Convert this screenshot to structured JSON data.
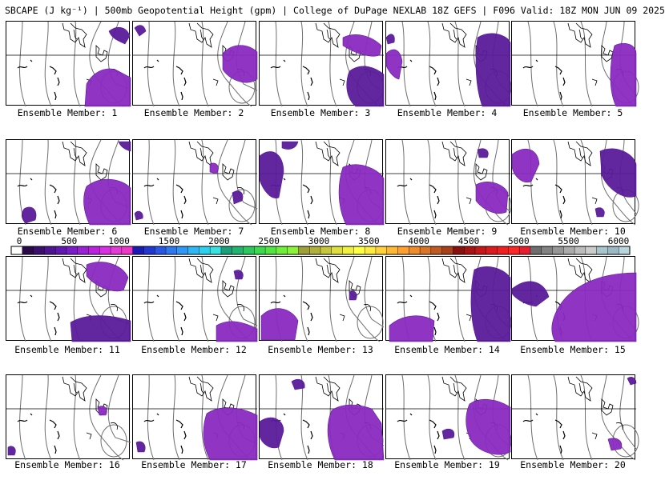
{
  "header": {
    "title": "SBCAPE (J kg⁻¹) | 500mb Geopotential Height (gpm) | College of DuPage NEXLAB 18Z GEFS | F096 Valid: 18Z MON JUN 09 2025"
  },
  "colors": {
    "contour": "#6e6e6e",
    "coast": "#000000",
    "cape_low": "#5a1a9a",
    "cape_mid": "#8a2ac0",
    "cape_high": "#b020e0"
  },
  "colorbar": {
    "labels": [
      "0",
      "500",
      "1000",
      "1500",
      "2000",
      "2500",
      "3000",
      "3500",
      "4000",
      "4500",
      "5000",
      "5500",
      "6000"
    ],
    "colors": [
      "#ffffff",
      "#2a0a4a",
      "#3c0f6e",
      "#4e1592",
      "#5f19b0",
      "#7a1dc8",
      "#9a20d6",
      "#bb22e0",
      "#d92fe6",
      "#e43ad6",
      "#ee38c8",
      "#1a1ab4",
      "#2236d2",
      "#2a56e6",
      "#2e78f0",
      "#2f98f6",
      "#2eb6f6",
      "#2dd0ee",
      "#38e2e0",
      "#1aa07a",
      "#22b46e",
      "#2cc85e",
      "#3cd84e",
      "#52e440",
      "#6ef03a",
      "#8af438",
      "#a0a038",
      "#b0b03a",
      "#c6c63c",
      "#dede3e",
      "#f0f040",
      "#ffff44",
      "#ffea40",
      "#ffd23c",
      "#ffb836",
      "#ffa030",
      "#f08a2a",
      "#dc7426",
      "#c05a20",
      "#a8401a",
      "#8a1010",
      "#a81414",
      "#c41818",
      "#dc1c1c",
      "#f02020",
      "#ff2626",
      "#e81e2e",
      "#6e6e6e",
      "#828282",
      "#969696",
      "#aaaaaa",
      "#bcbcbc",
      "#cccccc",
      "#a8c4cc",
      "#9cb8c6",
      "#b8d4dc"
    ]
  },
  "members": [
    {
      "label": "Ensemble Member: 1"
    },
    {
      "label": "Ensemble Member: 2"
    },
    {
      "label": "Ensemble Member: 3"
    },
    {
      "label": "Ensemble Member: 4"
    },
    {
      "label": "Ensemble Member: 5"
    },
    {
      "label": "Ensemble Member: 6"
    },
    {
      "label": "Ensemble Member: 7"
    },
    {
      "label": "Ensemble Member: 8"
    },
    {
      "label": "Ensemble Member: 9"
    },
    {
      "label": "Ensemble Member: 10"
    },
    {
      "label": "Ensemble Member: 11"
    },
    {
      "label": "Ensemble Member: 12"
    },
    {
      "label": "Ensemble Member: 13"
    },
    {
      "label": "Ensemble Member: 14"
    },
    {
      "label": "Ensemble Member: 15"
    },
    {
      "label": "Ensemble Member: 16"
    },
    {
      "label": "Ensemble Member: 17"
    },
    {
      "label": "Ensemble Member: 18"
    },
    {
      "label": "Ensemble Member: 19"
    },
    {
      "label": "Ensemble Member: 20"
    }
  ]
}
